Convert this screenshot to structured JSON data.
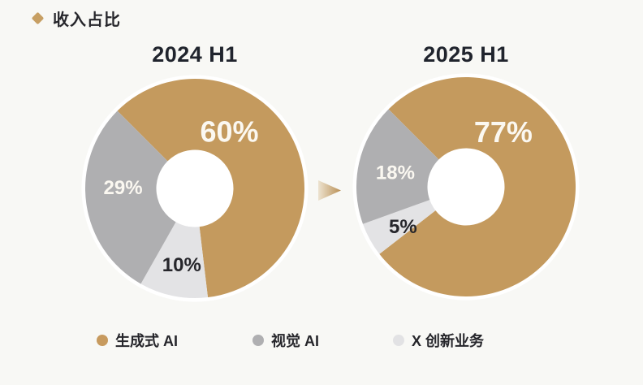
{
  "header": {
    "bullet_color": "#C79F63",
    "title": "收入占比"
  },
  "chart_data": [
    {
      "type": "pie",
      "donut": true,
      "title": "2024 H1",
      "start_angle_deg": -45,
      "direction": "clockwise",
      "legend_position": "bottom",
      "slices": [
        {
          "id": "generative-ai",
          "label": "生成式 AI",
          "value": 60,
          "display": "60%",
          "color": "#C49A5E",
          "label_color": "#FBF8F1"
        },
        {
          "id": "x-innovation",
          "label": "X 创新业务",
          "value": 10,
          "display": "10%",
          "color": "#E3E3E5",
          "label_color": "#26262B"
        },
        {
          "id": "visual-ai",
          "label": "视觉 AI",
          "value": 29,
          "display": "29%",
          "color": "#AFAFB1",
          "label_color": "#FBF8F1"
        }
      ]
    },
    {
      "type": "pie",
      "donut": true,
      "title": "2025 H1",
      "start_angle_deg": -45,
      "direction": "clockwise",
      "legend_position": "bottom",
      "slices": [
        {
          "id": "generative-ai",
          "label": "生成式 AI",
          "value": 77,
          "display": "77%",
          "color": "#C49A5E",
          "label_color": "#FBF8F1"
        },
        {
          "id": "x-innovation",
          "label": "X 创新业务",
          "value": 5,
          "display": "5%",
          "color": "#E3E3E5",
          "label_color": "#26262B"
        },
        {
          "id": "visual-ai",
          "label": "视觉 AI",
          "value": 18,
          "display": "18%",
          "color": "#AFAFB1",
          "label_color": "#FBF8F1"
        }
      ]
    }
  ],
  "legend": [
    {
      "label": "生成式 AI",
      "color": "#C79A5E"
    },
    {
      "label": "视觉 AI",
      "color": "#AFAFB1"
    },
    {
      "label": "X 创新业务",
      "color": "#E2E2E4"
    }
  ],
  "arrow": {
    "color_from": "#EDE3D0",
    "color_to": "#B98F54"
  },
  "colors": {
    "background": "#F8F8F5",
    "donut_backing": "#FFFFFF",
    "text_dark": "#26262B"
  }
}
